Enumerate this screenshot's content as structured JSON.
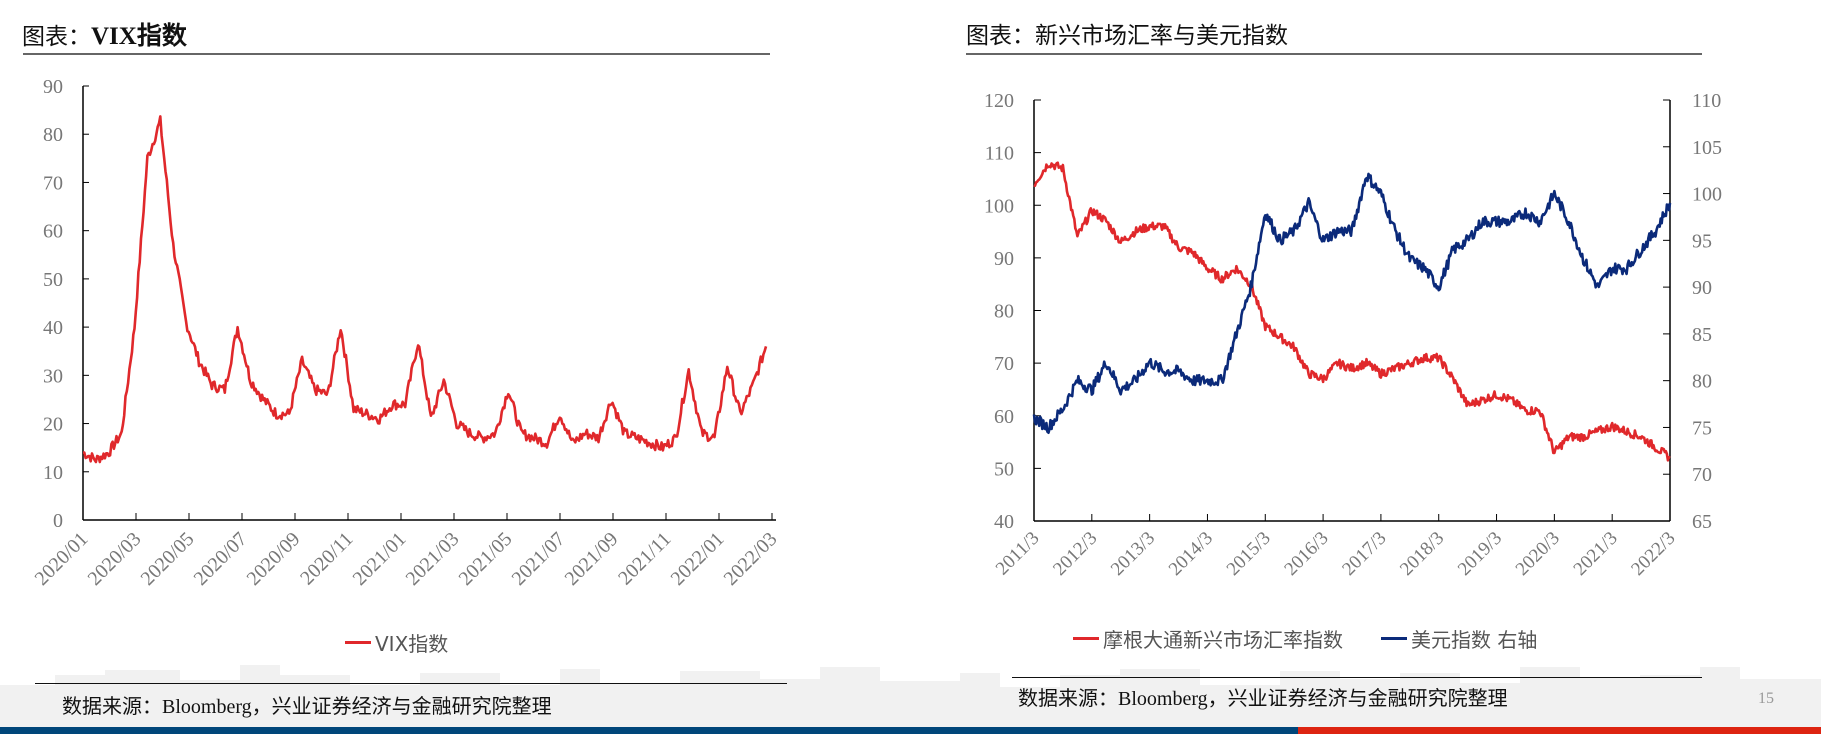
{
  "page": {
    "page_number": "15",
    "colors": {
      "bar_blue": "#00467a",
      "bar_red": "#dd2411",
      "series_red": "#e0282b",
      "series_blue": "#0b2a7a"
    }
  },
  "left_panel": {
    "title_prefix": "图表：",
    "title_main": "VIX指数",
    "source": "数据来源：Bloomberg，兴业证券经济与金融研究院整理",
    "legend": [
      {
        "label": "VIX指数",
        "color": "#e0282b"
      }
    ]
  },
  "right_panel": {
    "title": "图表：新兴市场汇率与美元指数",
    "source": "数据来源：Bloomberg，兴业证券经济与金融研究院整理",
    "legend": [
      {
        "label": "摩根大通新兴市场汇率指数",
        "color": "#e0282b"
      },
      {
        "label": "美元指数 右轴",
        "color": "#0b2a7a"
      }
    ]
  },
  "chart_data": [
    {
      "type": "line",
      "title": "VIX指数",
      "xlabel": "",
      "ylabel": "",
      "ylim": [
        0,
        90
      ],
      "yticks": [
        0,
        10,
        20,
        30,
        40,
        50,
        60,
        70,
        80,
        90
      ],
      "xticks": [
        "2020/01",
        "2020/03",
        "2020/05",
        "2020/07",
        "2020/09",
        "2020/11",
        "2021/01",
        "2021/03",
        "2021/05",
        "2021/07",
        "2021/09",
        "2021/11",
        "2022/01",
        "2022/03"
      ],
      "grid": false,
      "legend_position": "bottom",
      "series": [
        {
          "name": "VIX指数",
          "color": "#e0282b",
          "x": [
            "2020/01",
            "2020/01b",
            "2020/02",
            "2020/02b",
            "2020/03",
            "2020/03b",
            "2020/03c",
            "2020/04",
            "2020/04b",
            "2020/05",
            "2020/05b",
            "2020/06",
            "2020/06b",
            "2020/07",
            "2020/07b",
            "2020/08",
            "2020/08b",
            "2020/09",
            "2020/09b",
            "2020/10",
            "2020/10b",
            "2020/11",
            "2020/11b",
            "2020/12",
            "2020/12b",
            "2021/01",
            "2021/01b",
            "2021/02",
            "2021/02b",
            "2021/03",
            "2021/03b",
            "2021/04",
            "2021/04b",
            "2021/05",
            "2021/05b",
            "2021/06",
            "2021/06b",
            "2021/07",
            "2021/07b",
            "2021/08",
            "2021/08b",
            "2021/09",
            "2021/09b",
            "2021/10",
            "2021/10b",
            "2021/11",
            "2021/11b",
            "2021/12",
            "2021/12b",
            "2022/01",
            "2022/01b",
            "2022/02",
            "2022/02b",
            "2022/03"
          ],
          "values": [
            14,
            12.5,
            14,
            18,
            40,
            75,
            82.7,
            57,
            41,
            33,
            28,
            27,
            40,
            29,
            25,
            22,
            22,
            33,
            27,
            26,
            40,
            23,
            22,
            21,
            24,
            24,
            37,
            21,
            29,
            20,
            18,
            17,
            18,
            27,
            18,
            17,
            16,
            22,
            16,
            18,
            17,
            25,
            18,
            17,
            16,
            15,
            17,
            31,
            18,
            17,
            32,
            22,
            28,
            36
          ]
        }
      ]
    },
    {
      "type": "line",
      "title": "新兴市场汇率与美元指数",
      "xlabel": "",
      "ylabel": "",
      "ylim": [
        40,
        120
      ],
      "y2lim": [
        65,
        110
      ],
      "yticks": [
        40,
        50,
        60,
        70,
        80,
        90,
        100,
        110,
        120
      ],
      "y2ticks": [
        65,
        70,
        75,
        80,
        85,
        90,
        95,
        100,
        105,
        110
      ],
      "xticks": [
        "2011/3",
        "2012/3",
        "2013/3",
        "2014/3",
        "2015/3",
        "2016/3",
        "2017/3",
        "2018/3",
        "2019/3",
        "2020/3",
        "2021/3",
        "2022/3"
      ],
      "grid": false,
      "legend_position": "bottom",
      "series": [
        {
          "name": "摩根大通新兴市场汇率指数",
          "axis": "left",
          "color": "#e0282b",
          "x": [
            "2011/3",
            "2011/6",
            "2011/9",
            "2011/12",
            "2012/3",
            "2012/6",
            "2012/9",
            "2012/12",
            "2013/3",
            "2013/6",
            "2013/9",
            "2013/12",
            "2014/3",
            "2014/6",
            "2014/9",
            "2014/12",
            "2015/3",
            "2015/6",
            "2015/9",
            "2015/12",
            "2016/3",
            "2016/6",
            "2016/9",
            "2016/12",
            "2017/3",
            "2017/6",
            "2017/9",
            "2017/12",
            "2018/3",
            "2018/6",
            "2018/9",
            "2018/12",
            "2019/3",
            "2019/6",
            "2019/9",
            "2019/12",
            "2020/3",
            "2020/6",
            "2020/9",
            "2020/12",
            "2021/3",
            "2021/6",
            "2021/9",
            "2021/12",
            "2022/3"
          ],
          "values": [
            104,
            108,
            107,
            94,
            99,
            97,
            93,
            95,
            96,
            96,
            92,
            91,
            88,
            86,
            88,
            85,
            77,
            75,
            73,
            68,
            67,
            70,
            69,
            70,
            68,
            69,
            70,
            71,
            71,
            67,
            62,
            63,
            64,
            63,
            61,
            61,
            53,
            56,
            56,
            57,
            58,
            57,
            56,
            54,
            52
          ]
        },
        {
          "name": "美元指数 右轴",
          "axis": "right",
          "color": "#0b2a7a",
          "x": [
            "2011/3",
            "2011/6",
            "2011/9",
            "2011/12",
            "2012/3",
            "2012/6",
            "2012/9",
            "2012/12",
            "2013/3",
            "2013/6",
            "2013/9",
            "2013/12",
            "2014/3",
            "2014/6",
            "2014/9",
            "2014/12",
            "2015/3",
            "2015/6",
            "2015/9",
            "2015/12",
            "2016/3",
            "2016/6",
            "2016/9",
            "2016/12",
            "2017/3",
            "2017/6",
            "2017/9",
            "2017/12",
            "2018/3",
            "2018/6",
            "2018/9",
            "2018/12",
            "2019/3",
            "2019/6",
            "2019/9",
            "2019/12",
            "2020/3",
            "2020/6",
            "2020/9",
            "2020/12",
            "2021/3",
            "2021/6",
            "2021/9",
            "2021/12",
            "2022/3"
          ],
          "values": [
            76,
            75,
            77,
            80,
            79,
            82,
            79,
            80,
            82,
            81,
            81,
            80,
            80,
            80,
            85,
            90,
            98,
            95,
            96,
            99,
            95,
            96,
            96,
            102,
            100,
            96,
            93,
            92,
            90,
            94,
            95,
            97,
            97,
            97,
            98,
            97,
            100,
            97,
            93,
            90,
            92,
            92,
            94,
            96,
            99
          ]
        }
      ]
    }
  ]
}
